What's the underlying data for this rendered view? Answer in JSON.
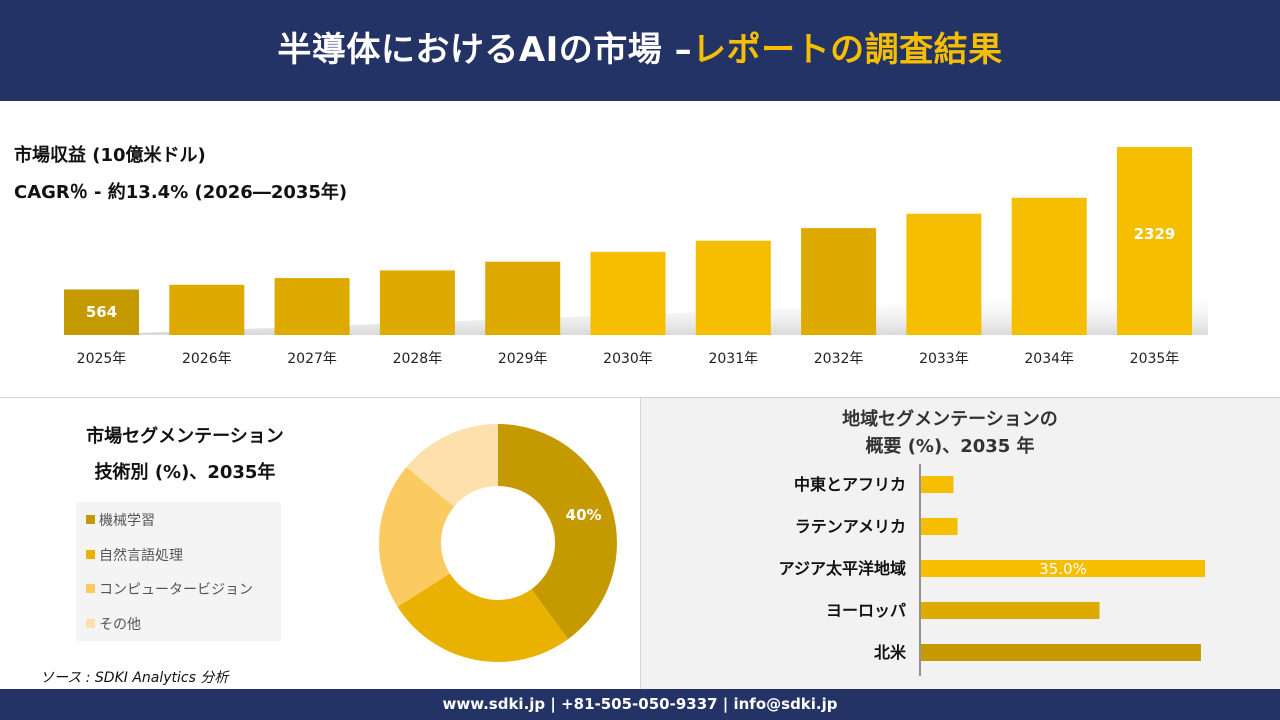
{
  "header": {
    "title_main": "半導体におけるAIの市場 –",
    "title_accent": "レポートの調査結果"
  },
  "metrics": {
    "revenue_label": "市場収益 (10億米ドル)",
    "cagr_label": "CAGR％ - 約13.4% (2026―2035年)"
  },
  "segment": {
    "title_line1": "市場セグメンテーション",
    "title_line2": "技術別 (%)、2035年",
    "legend": [
      "機械学習",
      "自然言語処理",
      "コンピュータービジョン",
      "その他"
    ]
  },
  "region": {
    "title_line1": "地域セグメンテーションの",
    "title_line2": "概要 (%)、2035 年"
  },
  "source": "ソース : SDKI Analytics 分析",
  "footer": "www.sdki.jp | +81-505-050-9337 | info@sdki.jp",
  "colors": {
    "navy": "#243366",
    "accent": "#f6be00",
    "bar_dark": "#c49a00",
    "bar_mid": "#deaa00",
    "bar_bright": "#f6be00",
    "donut_1": "#c49a00",
    "donut_2": "#e9b200",
    "donut_3": "#fbcb62",
    "donut_4": "#fde0ac"
  },
  "chart_data": [
    {
      "type": "bar",
      "categories": [
        "2025年",
        "2026年",
        "2027年",
        "2028年",
        "2029年",
        "2030年",
        "2031年",
        "2032年",
        "2033年",
        "2034年",
        "2035年"
      ],
      "values": [
        564,
        622,
        705,
        800,
        908,
        1030,
        1168,
        1324,
        1502,
        1700,
        2329
      ],
      "labeled": {
        "2025年": "564",
        "2035年": "2329"
      },
      "grid": false
    },
    {
      "type": "pie",
      "categories": [
        "機械学習",
        "自然言語処理",
        "コンピュータービジョン",
        "その他"
      ],
      "values": [
        40,
        26,
        20,
        14
      ],
      "labels": {
        "機械学習": "40%"
      },
      "legend": "left"
    },
    {
      "type": "bar",
      "orientation": "horizontal",
      "categories": [
        "中東とアフリカ",
        "ラテンアメリカ",
        "アジア太平洋地域",
        "ヨーロッパ",
        "北米"
      ],
      "values": [
        4,
        4.5,
        35.0,
        22,
        34.5
      ],
      "labels": {
        "アジア太平洋地域": "35.0%"
      },
      "grid": false
    }
  ]
}
